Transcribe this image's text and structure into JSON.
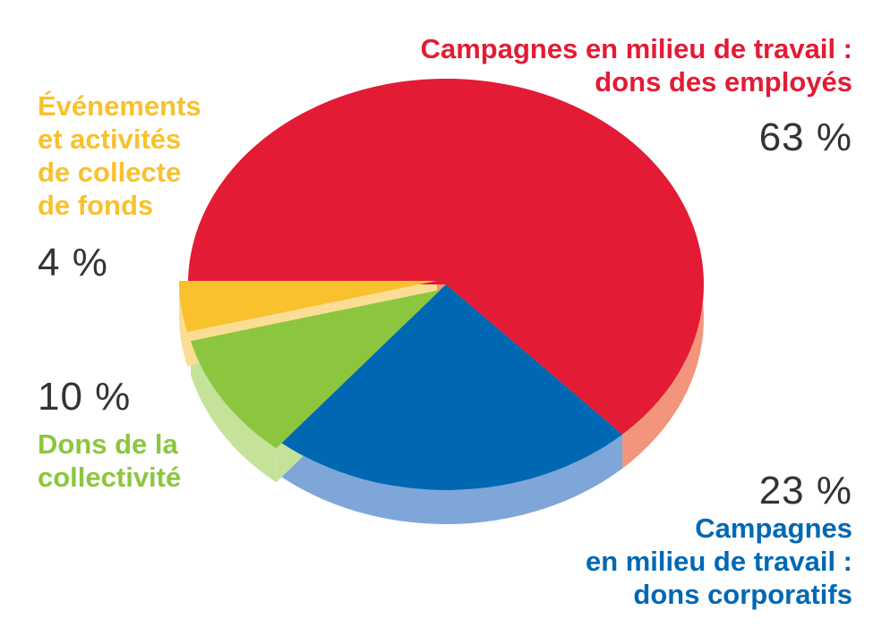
{
  "chart_data": {
    "type": "pie",
    "slices": [
      {
        "key": "employee",
        "label_lines": [
          "Campagnes en milieu de travail :",
          "dons des employés"
        ],
        "value": 63,
        "value_label": "63 %",
        "color": "#e31b35",
        "side_color": "#f2957c"
      },
      {
        "key": "corporate",
        "label_lines": [
          "Campagnes",
          "en milieu de travail :",
          "dons corporatifs"
        ],
        "value": 23,
        "value_label": "23 %",
        "color": "#0068b3",
        "side_color": "#7fa6d9"
      },
      {
        "key": "community",
        "label_lines": [
          "Dons de la",
          "collectivité"
        ],
        "value": 10,
        "value_label": "10 %",
        "color": "#8cc63f",
        "side_color": "#c5e29b"
      },
      {
        "key": "events",
        "label_lines": [
          "Événements",
          "et activités",
          "de collecte",
          "de fonds"
        ],
        "value": 4,
        "value_label": "4 %",
        "color": "#f8c12d",
        "side_color": "#fbdd95"
      }
    ]
  }
}
